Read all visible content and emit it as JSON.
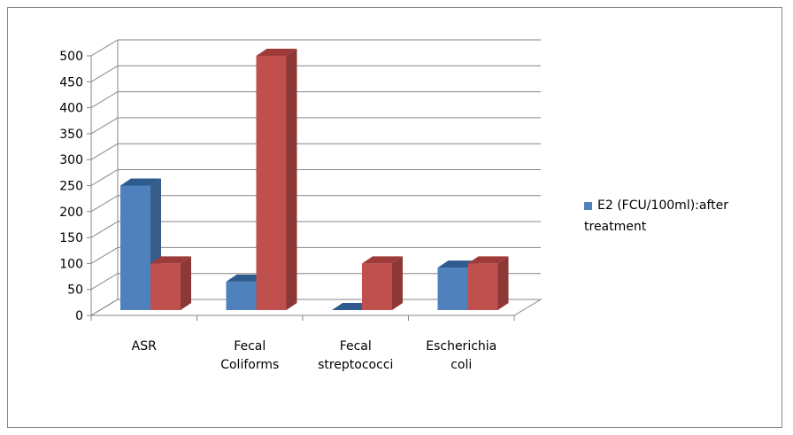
{
  "chart_data": {
    "type": "bar",
    "categories": [
      "ASR",
      "Fecal Coliforms",
      "Fecal streptococci",
      "Escherichia coli"
    ],
    "category_lines": [
      [
        "ASR"
      ],
      [
        "Fecal",
        "Coliforms"
      ],
      [
        "Fecal",
        "streptococci"
      ],
      [
        "Escherichia",
        "coli"
      ]
    ],
    "series": [
      {
        "name": "E2 (FCU/100ml):after treatment",
        "values": [
          250,
          65,
          10,
          92
        ],
        "color": "#4F81BD",
        "side_color": "#385D8A",
        "top_color": "#2E5A8E"
      },
      {
        "values": [
          100,
          500,
          100,
          100
        ],
        "color": "#C0504D",
        "side_color": "#8C3836",
        "top_color": "#9E3B38"
      }
    ],
    "ylim": [
      0,
      500
    ],
    "yticks": [
      0,
      50,
      100,
      150,
      200,
      250,
      300,
      350,
      400,
      450,
      500
    ],
    "grid": true,
    "legend_position": "right",
    "three_d": true
  }
}
